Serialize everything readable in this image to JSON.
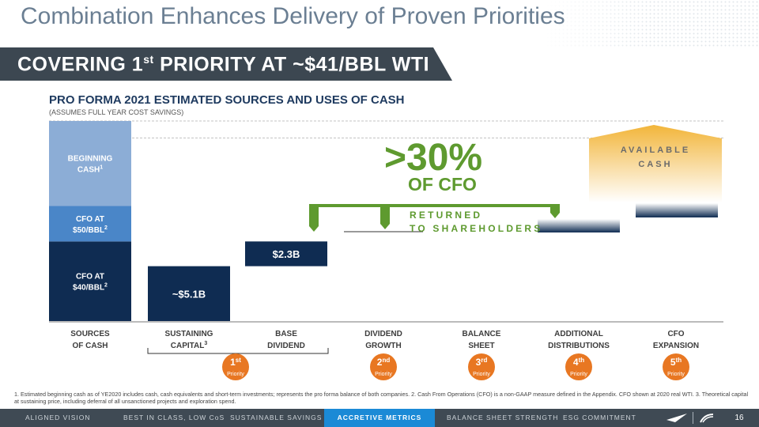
{
  "title": "Combination Enhances Delivery of Proven Priorities",
  "banner": {
    "text": "COVERING 1",
    "sup": "st",
    "rest": " PRIORITY AT ~$41/BBL WTI"
  },
  "colors": {
    "navy": "#0f2c52",
    "mid_blue": "#4a86c8",
    "light_blue": "#8cadd6",
    "green": "#5e9a2f",
    "orange": "#e87722",
    "accent": "#1b8ad6",
    "gold": "#f2b53a"
  },
  "chart_data": {
    "type": "bar",
    "title": "PRO FORMA 2021 ESTIMATED SOURCES AND USES OF CASH",
    "subtitle": "(ASSUMES FULL YEAR COST SAVINGS)",
    "categories": [
      {
        "line1": "SOURCES",
        "line2": "OF CASH",
        "sup": ""
      },
      {
        "line1": "SUSTAINING",
        "line2": "CAPITAL",
        "sup": "3"
      },
      {
        "line1": "BASE",
        "line2": "DIVIDEND",
        "sup": ""
      },
      {
        "line1": "DIVIDEND",
        "line2": "GROWTH",
        "sup": ""
      },
      {
        "line1": "BALANCE",
        "line2": "SHEET",
        "sup": ""
      },
      {
        "line1": "ADDITIONAL",
        "line2": "DISTRIBUTIONS",
        "sup": ""
      },
      {
        "line1": "CFO",
        "line2": "EXPANSION",
        "sup": ""
      }
    ],
    "source_segments": [
      {
        "line1": "CFO AT",
        "line2": "$40/BBL",
        "sup": "2",
        "value": 7.4
      },
      {
        "line1": "CFO AT",
        "line2": "$50/BBL",
        "sup": "2",
        "value": 3.3
      },
      {
        "line1": "BEGINNING",
        "line2": "CASH",
        "sup": "1",
        "value": 7.9
      }
    ],
    "uses": [
      {
        "category": "SUSTAINING CAPITAL",
        "label": "~$5.1B",
        "value": 5.1,
        "base": 0
      },
      {
        "category": "BASE DIVIDEND",
        "label": "$2.3B",
        "value": 2.3,
        "base": 5.1
      }
    ],
    "ylim": [
      0,
      18.6
    ],
    "bracket": {
      "from": "SUSTAINING CAPITAL",
      "to": "BASE DIVIDEND"
    },
    "priorities": [
      {
        "num": "1",
        "sup": "st",
        "word": "Priority"
      },
      {
        "num": "2",
        "sup": "nd",
        "word": "Priority"
      },
      {
        "num": "3",
        "sup": "rd",
        "word": "Priority"
      },
      {
        "num": "4",
        "sup": "th",
        "word": "Priority"
      },
      {
        "num": "5",
        "sup": "th",
        "word": "Priority"
      }
    ],
    "available_cash": {
      "line1": "AVAILABLE",
      "line2": "CASH"
    }
  },
  "callout": {
    "pct": ">30%",
    "of": "OF CFO",
    "returned_line1": "RETURNED",
    "returned_line2": "TO SHAREHOLDERS"
  },
  "footnote": "1. Estimated beginning cash as of YE2020 includes cash, cash equivalents and short-term investments; represents the pro forma balance of both companies.   2. Cash From Operations (CFO) is a non-GAAP measure defined in the Appendix. CFO shown at 2020 real WTI.    3. Theoretical capital at sustaining price, including deferral of all unsanctioned projects and exploration spend.",
  "nav": {
    "items": [
      "ALIGNED VISION",
      "BEST IN CLASS, LOW CoS",
      "SUSTAINABLE SAVINGS",
      "ACCRETIVE METRICS",
      "BALANCE SHEET STRENGTH",
      "ESG COMMITMENT"
    ],
    "active": "ACCRETIVE METRICS",
    "page": "16"
  }
}
